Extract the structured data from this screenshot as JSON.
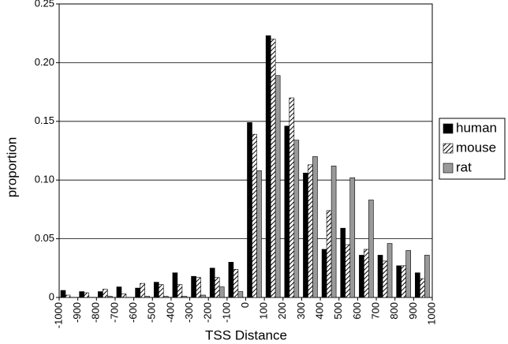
{
  "chart_data": {
    "type": "histogram",
    "xlabel": "TSS Distance",
    "ylabel": "proportion",
    "bins": [
      -1000,
      -900,
      -800,
      -700,
      -600,
      -500,
      -400,
      -300,
      -200,
      -100,
      0,
      100,
      200,
      300,
      400,
      500,
      600,
      700,
      800,
      900,
      1000
    ],
    "xlim": [
      -1000,
      1000
    ],
    "xticks": [
      -1000,
      -900,
      -800,
      -700,
      -600,
      -500,
      -400,
      -300,
      -200,
      -100,
      0,
      100,
      200,
      300,
      400,
      500,
      600,
      700,
      800,
      900,
      1000
    ],
    "ylim": [
      0,
      0.25
    ],
    "yticks": [
      0,
      0.05,
      {
        "value": 0.1,
        "label": "0.10"
      },
      {
        "value": 0.15,
        "label": "0.15"
      },
      {
        "value": 0.2,
        "label": "0.20"
      },
      {
        "value": 0.25,
        "label": "0.25"
      }
    ],
    "grid": true,
    "legend": "right",
    "series": [
      {
        "name": "human",
        "color": "#000000",
        "values": [
          0.006,
          0.005,
          0.005,
          0.009,
          0.008,
          0.013,
          0.021,
          0.018,
          0.025,
          0.03,
          0.149,
          0.223,
          0.146,
          0.106,
          0.041,
          0.059,
          0.036,
          0.036,
          0.027,
          0.021
        ]
      },
      {
        "name": "mouse",
        "color": "#000000",
        "pattern": "hatch",
        "values": [
          0.002,
          0.004,
          0.007,
          0.003,
          0.012,
          0.011,
          0.011,
          0.017,
          0.017,
          0.024,
          0.139,
          0.22,
          0.17,
          0.113,
          0.074,
          0.045,
          0.041,
          0.031,
          0.027,
          0.016
        ]
      },
      {
        "name": "rat",
        "color": "#999999",
        "values": [
          0.0,
          0.0,
          0.001,
          0.0,
          0.001,
          0.001,
          0.001,
          0.002,
          0.009,
          0.005,
          0.108,
          0.189,
          0.134,
          0.12,
          0.112,
          0.102,
          0.083,
          0.046,
          0.04,
          0.036
        ]
      }
    ]
  }
}
